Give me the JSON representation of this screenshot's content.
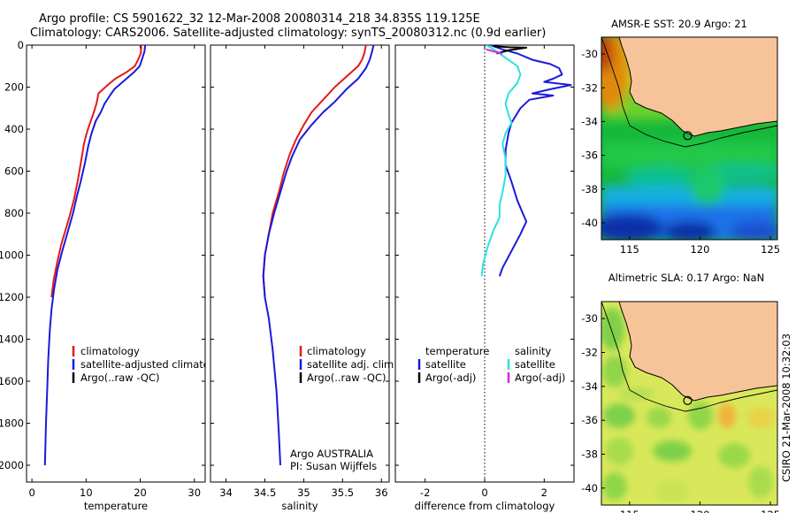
{
  "header": {
    "line1": "Argo profile: CS 5901622_32 12-Mar-2008 20080314_218 34.835S 119.125E",
    "line2": "Climatology: CARS2006. Satellite-adjusted climatology: synTS_20080312.nc (0.9d earlier)"
  },
  "colors": {
    "climatology": "#e41a1a",
    "satellite": "#1a1ad9",
    "argo": "#000000",
    "satellite_salinity": "#2de0e0",
    "argo_salinity_adj": "#e020e0",
    "land": "#f7c49a"
  },
  "chart_data": [
    {
      "type": "line",
      "panel": "temperature",
      "xlabel": "temperature",
      "ylabel": "",
      "xlim": [
        -1,
        32
      ],
      "ylim": [
        2080,
        0
      ],
      "xticks": [
        0,
        10,
        20,
        30
      ],
      "yticks": [
        0,
        200,
        400,
        600,
        800,
        1000,
        1200,
        1400,
        1600,
        1800,
        2000
      ],
      "series": [
        {
          "name": "climatology",
          "color": "#e41a1a",
          "points": [
            [
              20.2,
              0
            ],
            [
              20.1,
              40
            ],
            [
              19.6,
              70
            ],
            [
              19.0,
              100
            ],
            [
              17.4,
              130
            ],
            [
              15.4,
              160
            ],
            [
              14.0,
              190
            ],
            [
              12.9,
              215
            ],
            [
              12.3,
              230
            ],
            [
              11.9,
              280
            ],
            [
              11.3,
              330
            ],
            [
              10.6,
              380
            ],
            [
              10.0,
              430
            ],
            [
              9.6,
              470
            ],
            [
              9.1,
              550
            ],
            [
              8.5,
              640
            ],
            [
              7.8,
              730
            ],
            [
              7.0,
              810
            ],
            [
              6.2,
              880
            ],
            [
              5.4,
              950
            ],
            [
              4.7,
              1030
            ],
            [
              4.0,
              1120
            ],
            [
              3.6,
              1200
            ]
          ]
        },
        {
          "name": "satellite-adjusted climatology",
          "color": "#1a1ad9",
          "points": [
            [
              20.9,
              0
            ],
            [
              20.8,
              30
            ],
            [
              20.3,
              70
            ],
            [
              19.9,
              100
            ],
            [
              18.8,
              130
            ],
            [
              17.0,
              170
            ],
            [
              15.2,
              210
            ],
            [
              14.4,
              240
            ],
            [
              13.4,
              280
            ],
            [
              12.7,
              320
            ],
            [
              11.8,
              360
            ],
            [
              11.0,
              420
            ],
            [
              10.4,
              480
            ],
            [
              9.8,
              560
            ],
            [
              9.0,
              650
            ],
            [
              8.3,
              720
            ],
            [
              7.6,
              800
            ],
            [
              6.6,
              890
            ],
            [
              5.6,
              980
            ],
            [
              4.7,
              1070
            ],
            [
              4.1,
              1160
            ],
            [
              3.6,
              1260
            ],
            [
              3.3,
              1360
            ],
            [
              3.0,
              1500
            ],
            [
              2.8,
              1650
            ],
            [
              2.6,
              1800
            ],
            [
              2.5,
              1900
            ],
            [
              2.4,
              2000
            ]
          ]
        },
        {
          "name": "Argo(..raw -QC)",
          "color": "#000000",
          "points": []
        }
      ],
      "legend": [
        "climatology",
        "satellite-adjusted climatology",
        "Argo(..raw -QC)"
      ]
    },
    {
      "type": "line",
      "panel": "salinity",
      "xlabel": "salinity",
      "ylabel": "",
      "xlim": [
        33.8,
        36.1
      ],
      "ylim": [
        2080,
        0
      ],
      "xticks": [
        34,
        34.5,
        35,
        35.5,
        36
      ],
      "series": [
        {
          "name": "climatology",
          "color": "#e41a1a",
          "points": [
            [
              35.8,
              0
            ],
            [
              35.78,
              40
            ],
            [
              35.75,
              70
            ],
            [
              35.7,
              100
            ],
            [
              35.55,
              150
            ],
            [
              35.4,
              200
            ],
            [
              35.25,
              260
            ],
            [
              35.1,
              320
            ],
            [
              35.0,
              380
            ],
            [
              34.9,
              450
            ],
            [
              34.82,
              520
            ],
            [
              34.75,
              600
            ],
            [
              34.68,
              700
            ],
            [
              34.6,
              800
            ],
            [
              34.55,
              900
            ],
            [
              34.5,
              1000
            ],
            [
              34.48,
              1100
            ],
            [
              34.5,
              1200
            ]
          ]
        },
        {
          "name": "satellite adj. clim.",
          "color": "#1a1ad9",
          "points": [
            [
              35.9,
              0
            ],
            [
              35.88,
              30
            ],
            [
              35.85,
              70
            ],
            [
              35.8,
              110
            ],
            [
              35.7,
              160
            ],
            [
              35.55,
              210
            ],
            [
              35.4,
              270
            ],
            [
              35.25,
              320
            ],
            [
              35.1,
              380
            ],
            [
              34.95,
              450
            ],
            [
              34.85,
              530
            ],
            [
              34.78,
              600
            ],
            [
              34.7,
              700
            ],
            [
              34.62,
              800
            ],
            [
              34.55,
              900
            ],
            [
              34.5,
              1000
            ],
            [
              34.48,
              1100
            ],
            [
              34.5,
              1200
            ],
            [
              34.55,
              1300
            ],
            [
              34.6,
              1450
            ],
            [
              34.65,
              1650
            ],
            [
              34.68,
              1850
            ],
            [
              34.7,
              2000
            ]
          ]
        },
        {
          "name": "Argo(..raw -QC)",
          "color": "#000000",
          "points": []
        }
      ],
      "legend": [
        "climatology",
        "satellite adj. clim.",
        "Argo(..raw -QC)"
      ],
      "annotation": [
        "Argo AUSTRALIA",
        "PI: Susan Wijffels"
      ]
    },
    {
      "type": "line",
      "panel": "difference",
      "xlabel": "difference from climatology",
      "ylabel": "",
      "xlim": [
        -3,
        3
      ],
      "ylim": [
        2080,
        0
      ],
      "xticks": [
        -2,
        0,
        2
      ],
      "series": [
        {
          "name": "satellite",
          "group": "temperature",
          "color": "#1a1ad9",
          "points": [
            [
              0.2,
              0
            ],
            [
              0.6,
              20
            ],
            [
              1.1,
              40
            ],
            [
              1.6,
              70
            ],
            [
              2.2,
              90
            ],
            [
              2.5,
              110
            ],
            [
              2.6,
              140
            ],
            [
              2.3,
              160
            ],
            [
              2.0,
              175
            ],
            [
              2.9,
              190
            ],
            [
              2.2,
              210
            ],
            [
              1.6,
              230
            ],
            [
              2.3,
              240
            ],
            [
              1.5,
              260
            ],
            [
              1.2,
              300
            ],
            [
              0.9,
              370
            ],
            [
              0.8,
              420
            ],
            [
              0.7,
              500
            ],
            [
              0.7,
              570
            ],
            [
              0.9,
              650
            ],
            [
              1.1,
              740
            ],
            [
              1.4,
              840
            ],
            [
              1.2,
              900
            ],
            [
              0.9,
              980
            ],
            [
              0.6,
              1060
            ],
            [
              0.5,
              1100
            ]
          ]
        },
        {
          "name": "Argo(-adj)",
          "group": "temperature",
          "color": "#000000",
          "points": [
            [
              0.3,
              5
            ],
            [
              0.8,
              10
            ],
            [
              1.4,
              12
            ],
            [
              0.8,
              25
            ],
            [
              0.4,
              40
            ]
          ]
        },
        {
          "name": "satellite",
          "group": "salinity",
          "color": "#2de0e0",
          "points": [
            [
              0.05,
              0
            ],
            [
              0.3,
              20
            ],
            [
              0.7,
              60
            ],
            [
              1.1,
              100
            ],
            [
              1.2,
              140
            ],
            [
              1.1,
              180
            ],
            [
              0.8,
              230
            ],
            [
              0.7,
              280
            ],
            [
              0.8,
              330
            ],
            [
              0.9,
              370
            ],
            [
              0.7,
              420
            ],
            [
              0.6,
              470
            ],
            [
              0.7,
              540
            ],
            [
              0.7,
              620
            ],
            [
              0.6,
              700
            ],
            [
              0.5,
              760
            ],
            [
              0.5,
              820
            ],
            [
              0.3,
              880
            ],
            [
              0.1,
              960
            ],
            [
              -0.05,
              1040
            ],
            [
              -0.1,
              1100
            ]
          ]
        },
        {
          "name": "Argo(-adj)",
          "group": "salinity",
          "color": "#e020e0",
          "points": [
            [
              0.05,
              20
            ],
            [
              0.3,
              30
            ],
            [
              0.6,
              40
            ]
          ]
        }
      ],
      "legend_titles": [
        "temperature",
        "salinity"
      ],
      "legend": [
        "satellite",
        "Argo(-adj)",
        "satellite",
        "Argo(-adj)"
      ]
    },
    {
      "type": "heatmap",
      "panel": "sst_map",
      "title": "AMSR-E SST: 20.9 Argo: 21",
      "xlim": [
        113,
        125.5
      ],
      "ylim": [
        -41,
        -29
      ],
      "xticks": [
        115,
        120,
        125
      ],
      "yticks": [
        -30,
        -32,
        -34,
        -36,
        -38,
        -40
      ],
      "profile_location": [
        119.125,
        -34.835
      ]
    },
    {
      "type": "heatmap",
      "panel": "sla_map",
      "title": "Altimetric SLA: 0.17 Argo: NaN",
      "xlim": [
        113,
        125.5
      ],
      "ylim": [
        -41,
        -29
      ],
      "xticks": [
        115,
        120,
        125
      ],
      "yticks": [
        -30,
        -32,
        -34,
        -36,
        -38,
        -40
      ],
      "profile_location": [
        119.125,
        -34.835
      ]
    }
  ],
  "side_label": "CSIRO 21-Mar-2008 10:32:03"
}
